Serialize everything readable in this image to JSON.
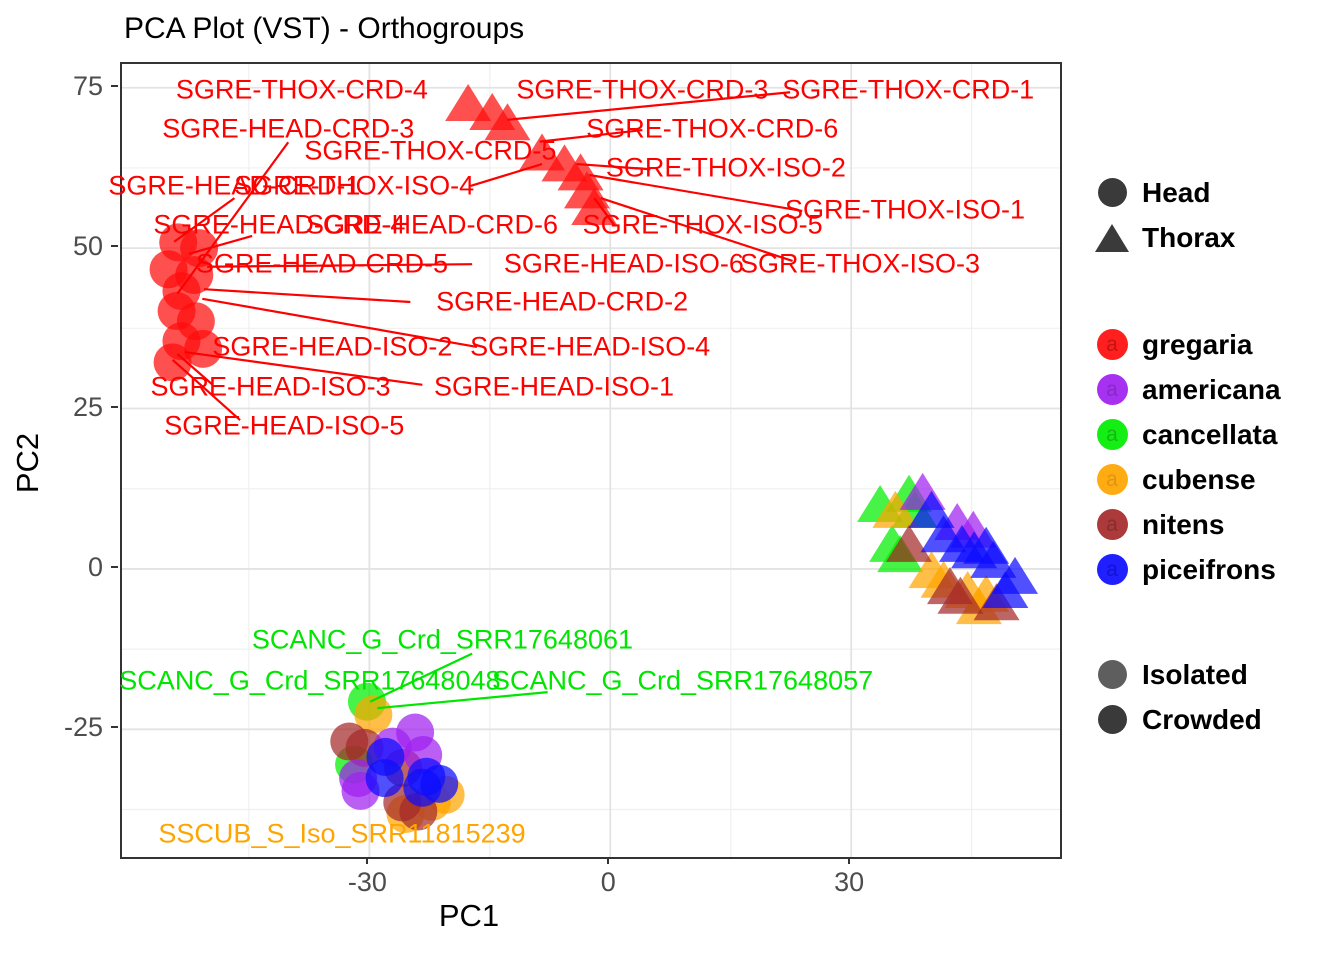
{
  "title": "PCA Plot (VST) - Orthogroups",
  "axes": {
    "x_label": "PC1",
    "y_label": "PC2"
  },
  "legend": {
    "shape_items": [
      {
        "label": "Head",
        "shape": "circle",
        "color": "#3A3A3A"
      },
      {
        "label": "Thorax",
        "shape": "triangle",
        "color": "#3A3A3A"
      }
    ],
    "species_items": [
      {
        "label": "gregaria",
        "color": "#FF0D0D",
        "letter": "a",
        "letter_color": "#C00000"
      },
      {
        "label": "americana",
        "color": "#A020F0",
        "letter": "a",
        "letter_color": "#7D19BC"
      },
      {
        "label": "cancellata",
        "color": "#00EE00",
        "letter": "a",
        "letter_color": "#00B300"
      },
      {
        "label": "cubense",
        "color": "#FFA500",
        "letter": "a",
        "letter_color": "#DB8E00"
      },
      {
        "label": "nitens",
        "color": "#A52A2A",
        "letter": "a",
        "letter_color": "#7C1D1D"
      },
      {
        "label": "piceifrons",
        "color": "#0D0DFF",
        "letter": "a",
        "letter_color": "#0000C8"
      }
    ],
    "alpha_items": [
      {
        "label": "Isolated",
        "color": "#3A3A3A",
        "opacity": 0.82
      },
      {
        "label": "Crowded",
        "color": "#3A3A3A",
        "opacity": 1.0
      }
    ]
  },
  "chart_data": {
    "type": "scatter",
    "title": "PCA Plot (VST) - Orthogroups",
    "xlabel": "PC1",
    "ylabel": "PC2",
    "xlim": [
      -60.8,
      56.0
    ],
    "ylim": [
      -44.9,
      78.7
    ],
    "x_ticks": [
      -30,
      0,
      30
    ],
    "y_ticks": [
      75,
      50,
      25,
      0,
      -25
    ],
    "x_minor": [
      -45,
      -15,
      15,
      45
    ],
    "y_minor": [
      62.5,
      37.5,
      12.5,
      -12.5,
      -37.5
    ],
    "grid": true,
    "legend_position": "right",
    "point_opacity": 0.72,
    "species_colors": {
      "gregaria": "#FF0D0D",
      "americana": "#A020F0",
      "cancellata": "#00EE00",
      "cubense": "#FFA500",
      "nitens": "#A52A2A",
      "piceifrons": "#0D0DFF"
    },
    "series": [
      {
        "species": "gregaria",
        "tissue": "Head",
        "shape": "circle",
        "color": "#FF0D0D",
        "points": [
          [
            -53.8,
            50.9
          ],
          [
            -51.2,
            50.0
          ],
          [
            -55.0,
            46.7
          ],
          [
            -51.8,
            45.8
          ],
          [
            -53.4,
            43.3
          ],
          [
            -54.0,
            40.2
          ],
          [
            -51.6,
            38.6
          ],
          [
            -53.4,
            35.5
          ],
          [
            -50.7,
            34.3
          ],
          [
            -54.5,
            32.2
          ]
        ]
      },
      {
        "species": "gregaria",
        "tissue": "Thorax",
        "shape": "triangle",
        "color": "#FF0D0D",
        "points": [
          [
            -17.7,
            72.3
          ],
          [
            -14.7,
            70.9
          ],
          [
            -12.8,
            69.3
          ],
          [
            -8.5,
            64.6
          ],
          [
            -5.7,
            62.9
          ],
          [
            -3.7,
            61.5
          ],
          [
            -2.9,
            58.7
          ],
          [
            -2.0,
            56.1
          ]
        ]
      },
      {
        "species": "cancellata",
        "tissue": "Head",
        "shape": "circle",
        "color": "#00EE00",
        "points": [
          [
            -30.3,
            -20.7
          ],
          [
            -31.9,
            -30.5
          ]
        ]
      },
      {
        "species": "cubense",
        "tissue": "Head",
        "shape": "circle",
        "color": "#FFA500",
        "points": [
          [
            -29.5,
            -22.7
          ],
          [
            -20.5,
            -35.2
          ],
          [
            -25.5,
            -38.2
          ],
          [
            -22.2,
            -36.3
          ]
        ]
      },
      {
        "species": "nitens",
        "tissue": "Head",
        "shape": "circle",
        "color": "#A52A2A",
        "points": [
          [
            -32.5,
            -26.9
          ],
          [
            -30.6,
            -27.9
          ],
          [
            -25.8,
            -31.0
          ],
          [
            -25.9,
            -36.4
          ],
          [
            -23.9,
            -37.8
          ]
        ]
      },
      {
        "species": "americana",
        "tissue": "Head",
        "shape": "circle",
        "color": "#A020F0",
        "points": [
          [
            -24.3,
            -25.5
          ],
          [
            -23.3,
            -29.0
          ],
          [
            -31.4,
            -32.6
          ],
          [
            -31.1,
            -34.6
          ],
          [
            -27.1,
            -27.7
          ]
        ]
      },
      {
        "species": "piceifrons",
        "tissue": "Head",
        "shape": "circle",
        "color": "#0D0DFF",
        "points": [
          [
            -28.0,
            -29.3
          ],
          [
            -28.1,
            -32.6
          ],
          [
            -22.9,
            -32.4
          ],
          [
            -21.3,
            -33.5
          ],
          [
            -23.4,
            -34.1
          ]
        ]
      },
      {
        "species": "cancellata",
        "tissue": "Thorax",
        "shape": "triangle",
        "color": "#00EE00",
        "points": [
          [
            33.6,
            9.8
          ],
          [
            37.2,
            11.4
          ],
          [
            37.9,
            8.9
          ],
          [
            35.1,
            3.6
          ],
          [
            36.1,
            2.0
          ]
        ]
      },
      {
        "species": "cubense",
        "tissue": "Thorax",
        "shape": "triangle",
        "color": "#FFA500",
        "points": [
          [
            35.5,
            8.9
          ],
          [
            40.0,
            -0.5
          ],
          [
            41.5,
            -2.0
          ],
          [
            44.5,
            -3.6
          ],
          [
            45.9,
            -6.1
          ],
          [
            46.8,
            -4.2
          ]
        ]
      },
      {
        "species": "americana",
        "tissue": "Thorax",
        "shape": "triangle",
        "color": "#A020F0",
        "points": [
          [
            38.9,
            11.7
          ],
          [
            43.2,
            7.0
          ],
          [
            45.2,
            5.8
          ]
        ]
      },
      {
        "species": "nitens",
        "tissue": "Thorax",
        "shape": "triangle",
        "color": "#A52A2A",
        "points": [
          [
            37.2,
            3.6
          ],
          [
            42.3,
            -3.0
          ],
          [
            43.6,
            -4.5
          ],
          [
            48.1,
            -5.5
          ]
        ]
      },
      {
        "species": "piceifrons",
        "tissue": "Thorax",
        "shape": "triangle",
        "color": "#0D0DFF",
        "points": [
          [
            40.0,
            8.9
          ],
          [
            41.5,
            5.1
          ],
          [
            43.8,
            3.6
          ],
          [
            45.3,
            2.6
          ],
          [
            46.8,
            3.3
          ],
          [
            47.7,
            1.1
          ],
          [
            50.4,
            -1.4
          ],
          [
            49.2,
            -3.6
          ]
        ]
      }
    ],
    "point_labels": [
      {
        "text": "SGRE-THOX-CRD-4",
        "x": -38.4,
        "y": 74.7,
        "color": "#FF0000"
      },
      {
        "text": "SGRE-THOX-CRD-3",
        "x": 4.0,
        "y": 74.7,
        "color": "#FF0000"
      },
      {
        "text": "SGRE-THOX-CRD-1",
        "x": 37.1,
        "y": 74.7,
        "color": "#FF0000"
      },
      {
        "text": "SGRE-HEAD-CRD-3",
        "x": -40.1,
        "y": 68.6,
        "color": "#FF0000"
      },
      {
        "text": "SGRE-THOX-CRD-6",
        "x": 12.7,
        "y": 68.6,
        "color": "#FF0000"
      },
      {
        "text": "SGRE-THOX-CRD-5",
        "x": -22.4,
        "y": 65.1,
        "color": "#FF0000"
      },
      {
        "text": "SGRE-THOX-ISO-2",
        "x": 14.4,
        "y": 62.5,
        "color": "#FF0000"
      },
      {
        "text": "SGRE-HEAD-CRD-1",
        "x": -46.8,
        "y": 59.7,
        "color": "#FF0000"
      },
      {
        "text": "SGRE-THOX-ISO-4",
        "x": -31.9,
        "y": 59.7,
        "color": "#FF0000"
      },
      {
        "text": "SGRE-THOX-ISO-1",
        "x": 36.7,
        "y": 56.0,
        "color": "#FF0000"
      },
      {
        "text": "SGRE-HEAD-CRD-4",
        "x": -41.2,
        "y": 53.6,
        "color": "#FF0000"
      },
      {
        "text": "SGRE-HEAD-CRD-6",
        "x": -22.2,
        "y": 53.6,
        "color": "#FF0000"
      },
      {
        "text": "SGRE-THOX-ISO-5",
        "x": 11.5,
        "y": 53.6,
        "color": "#FF0000"
      },
      {
        "text": "SGRE-HEAD-CRD-5",
        "x": -35.9,
        "y": 47.5,
        "color": "#FF0000"
      },
      {
        "text": "SGRE-HEAD-ISO-6",
        "x": 1.7,
        "y": 47.5,
        "color": "#FF0000"
      },
      {
        "text": "SGRE-THOX-ISO-3",
        "x": 31.1,
        "y": 47.5,
        "color": "#FF0000"
      },
      {
        "text": "SGRE-HEAD-CRD-2",
        "x": -6.0,
        "y": 41.6,
        "color": "#FF0000"
      },
      {
        "text": "SGRE-HEAD-ISO-2",
        "x": -34.6,
        "y": 34.6,
        "color": "#FF0000"
      },
      {
        "text": "SGRE-HEAD-ISO-4",
        "x": -2.5,
        "y": 34.6,
        "color": "#FF0000"
      },
      {
        "text": "SGRE-HEAD-ISO-3",
        "x": -42.3,
        "y": 28.4,
        "color": "#FF0000"
      },
      {
        "text": "SGRE-HEAD-ISO-1",
        "x": -7.0,
        "y": 28.4,
        "color": "#FF0000"
      },
      {
        "text": "SGRE-HEAD-ISO-5",
        "x": -40.6,
        "y": 22.3,
        "color": "#FF0000"
      },
      {
        "text": "SCANC_G_Crd_SRR17648061",
        "x": -20.9,
        "y": -11.1,
        "color": "#00E600"
      },
      {
        "text": "SCANC_G_Crd_SRR17648048",
        "x": -37.4,
        "y": -17.5,
        "color": "#00E600"
      },
      {
        "text": "SCANC_G_Crd_SRR17648057",
        "x": 9.0,
        "y": -17.5,
        "color": "#00E600"
      },
      {
        "text": "SSCUB_S_Iso_SRR11815239",
        "x": -33.4,
        "y": -41.3,
        "color": "#FFA500"
      }
    ],
    "segments": [
      {
        "x1": -40.1,
        "y1": 66.5,
        "x2": -53.9,
        "y2": 42.9,
        "color": "#FF0000"
      },
      {
        "x1": -46.8,
        "y1": 57.8,
        "x2": -54.3,
        "y2": 51.0,
        "color": "#FF0000"
      },
      {
        "x1": -44.6,
        "y1": 51.9,
        "x2": -52.5,
        "y2": 49.1,
        "color": "#FF0000"
      },
      {
        "x1": -12.8,
        "y1": 70.0,
        "x2": 22.4,
        "y2": 74.3,
        "color": "#FF0000"
      },
      {
        "x1": 4.0,
        "y1": 68.4,
        "x2": -8.8,
        "y2": 66.6,
        "color": "#FF0000"
      },
      {
        "x1": 5.0,
        "y1": 62.3,
        "x2": -4.2,
        "y2": 63.1,
        "color": "#FF0000"
      },
      {
        "x1": 23.9,
        "y1": 55.8,
        "x2": -2.6,
        "y2": 61.4,
        "color": "#FF0000"
      },
      {
        "x1": 0.5,
        "y1": 53.6,
        "x2": -2.0,
        "y2": 57.8,
        "color": "#FF0000"
      },
      {
        "x1": 22.7,
        "y1": 48.0,
        "x2": -1.2,
        "y2": 57.8,
        "color": "#FF0000"
      },
      {
        "x1": -50.2,
        "y1": 47.1,
        "x2": -17.2,
        "y2": 47.5,
        "color": "#FF0000"
      },
      {
        "x1": -50.6,
        "y1": 43.6,
        "x2": -24.9,
        "y2": 41.6,
        "color": "#FF0000"
      },
      {
        "x1": -50.8,
        "y1": 42.1,
        "x2": -16.6,
        "y2": 34.6,
        "color": "#FF0000"
      },
      {
        "x1": -53.0,
        "y1": 33.8,
        "x2": -23.4,
        "y2": 28.7,
        "color": "#FF0000"
      },
      {
        "x1": -53.9,
        "y1": 33.5,
        "x2": -49.6,
        "y2": 28.8,
        "color": "#FF0000"
      },
      {
        "x1": -54.5,
        "y1": 32.6,
        "x2": -46.1,
        "y2": 23.2,
        "color": "#FF0000"
      },
      {
        "x1": -17.4,
        "y1": 59.7,
        "x2": -8.5,
        "y2": 63.1,
        "color": "#FF0000"
      },
      {
        "x1": -17.2,
        "y1": -13.2,
        "x2": -29.9,
        "y2": -20.7,
        "color": "#00E600"
      },
      {
        "x1": -7.8,
        "y1": -19.2,
        "x2": -29.0,
        "y2": -21.7,
        "color": "#00E600"
      }
    ]
  }
}
